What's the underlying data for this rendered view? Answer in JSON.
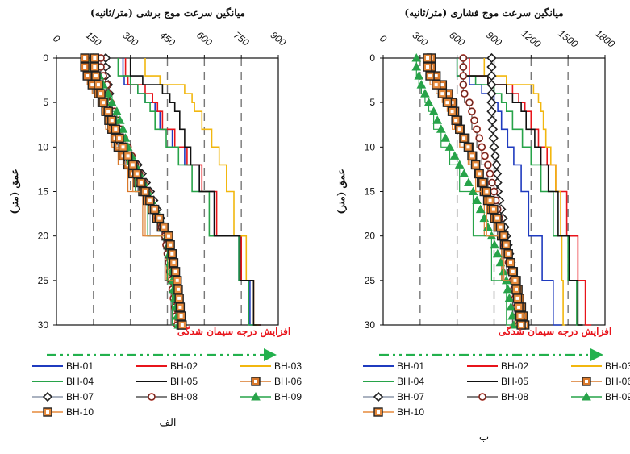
{
  "chart_data": [
    {
      "type": "line",
      "panel_label": "الف",
      "title": "میانگین سرعت موج برشی (متر/ثانیه)",
      "ylabel": "عمق (متر)",
      "xlim": [
        0,
        900
      ],
      "ylim": [
        0,
        30
      ],
      "x_axis_position": "top",
      "y_inverted": true,
      "x_ticks": [
        0,
        150,
        300,
        450,
        600,
        750,
        900
      ],
      "y_ticks": [
        0,
        5,
        10,
        15,
        20,
        25,
        30
      ],
      "grid": "vertical dashed gray",
      "annotation": "افزایش درجه سیمان شدگی",
      "y_knots": [
        0,
        1,
        2,
        3,
        4,
        5,
        6,
        8,
        10,
        12,
        15,
        20,
        25,
        30
      ],
      "series": [
        {
          "name": "BH-01",
          "color": "#1f3bbf",
          "marker": "none",
          "values": [
            270,
            270,
            275,
            330,
            360,
            400,
            420,
            470,
            520,
            580,
            640,
            740,
            785,
            815
          ]
        },
        {
          "name": "BH-02",
          "color": "#e8141b",
          "marker": "none",
          "values": [
            280,
            280,
            290,
            360,
            390,
            410,
            430,
            480,
            530,
            590,
            650,
            750,
            800,
            830
          ]
        },
        {
          "name": "BH-03",
          "color": "#f2b70f",
          "marker": "none",
          "values": [
            360,
            360,
            420,
            520,
            550,
            560,
            590,
            630,
            660,
            690,
            720,
            770,
            800,
            820
          ]
        },
        {
          "name": "BH-04",
          "color": "#27a349",
          "marker": "none",
          "values": [
            250,
            250,
            300,
            330,
            360,
            380,
            400,
            445,
            495,
            550,
            620,
            740,
            780,
            810
          ]
        },
        {
          "name": "BH-05",
          "color": "#111111",
          "marker": "none",
          "values": [
            300,
            300,
            350,
            430,
            460,
            480,
            500,
            520,
            545,
            580,
            640,
            745,
            800,
            830
          ]
        },
        {
          "name": "BH-06",
          "color": "#d9782a",
          "marker": "square",
          "values": [
            115,
            115,
            125,
            145,
            170,
            185,
            200,
            225,
            250,
            290,
            350,
            445,
            480,
            505
          ]
        },
        {
          "name": "BH-07",
          "color": "#8d98ab",
          "marker": "diamond",
          "values": [
            200,
            200,
            200,
            210,
            215,
            215,
            225,
            250,
            280,
            330,
            380,
            450,
            470,
            495
          ]
        },
        {
          "name": "BH-08",
          "color": "#555555",
          "marker": "circle",
          "values": [
            180,
            180,
            190,
            205,
            210,
            220,
            235,
            260,
            290,
            320,
            370,
            440,
            465,
            490
          ]
        },
        {
          "name": "BH-09",
          "color": "#27a349",
          "marker": "triangle",
          "values": [
            150,
            150,
            175,
            190,
            210,
            225,
            245,
            270,
            290,
            320,
            370,
            450,
            470,
            495
          ]
        },
        {
          "name": "BH-10",
          "color": "#e68a3c",
          "marker": "square",
          "values": [
            155,
            155,
            160,
            170,
            180,
            190,
            210,
            240,
            270,
            310,
            360,
            455,
            490,
            510
          ]
        }
      ]
    },
    {
      "type": "line",
      "panel_label": "ب",
      "title": "میانگین سرعت موج فشاری (متر/ثانیه)",
      "ylabel": "عمق (متر)",
      "xlim": [
        0,
        1800
      ],
      "ylim": [
        0,
        30
      ],
      "x_axis_position": "top",
      "y_inverted": true,
      "x_ticks": [
        0,
        300,
        600,
        900,
        1200,
        1500,
        1800
      ],
      "y_ticks": [
        0,
        5,
        10,
        15,
        20,
        25,
        30
      ],
      "grid": "vertical dashed gray",
      "annotation": "افزایش درجه سیمان شدگی",
      "y_knots": [
        0,
        1,
        2,
        3,
        4,
        5,
        6,
        8,
        10,
        12,
        15,
        20,
        25,
        30
      ],
      "series": [
        {
          "name": "BH-01",
          "color": "#1f3bbf",
          "marker": "none",
          "values": [
            600,
            600,
            700,
            800,
            900,
            930,
            960,
            1010,
            1060,
            1120,
            1180,
            1290,
            1380,
            1440
          ]
        },
        {
          "name": "BH-02",
          "color": "#e8141b",
          "marker": "none",
          "values": [
            700,
            700,
            850,
            1050,
            1100,
            1150,
            1200,
            1260,
            1330,
            1400,
            1490,
            1580,
            1640,
            1690
          ]
        },
        {
          "name": "BH-03",
          "color": "#f2b70f",
          "marker": "none",
          "values": [
            820,
            820,
            1000,
            1220,
            1260,
            1280,
            1300,
            1320,
            1360,
            1400,
            1440,
            1450,
            1460,
            1480
          ]
        },
        {
          "name": "BH-04",
          "color": "#27a349",
          "marker": "none",
          "values": [
            600,
            600,
            750,
            900,
            960,
            1000,
            1050,
            1130,
            1200,
            1280,
            1380,
            1500,
            1570,
            1620
          ]
        },
        {
          "name": "BH-05",
          "color": "#111111",
          "marker": "none",
          "values": [
            650,
            650,
            850,
            1000,
            1050,
            1120,
            1160,
            1230,
            1280,
            1340,
            1420,
            1510,
            1580,
            1620
          ]
        },
        {
          "name": "BH-06",
          "color": "#d9782a",
          "marker": "square",
          "values": [
            390,
            390,
            430,
            480,
            530,
            560,
            580,
            630,
            700,
            750,
            820,
            960,
            1080,
            1150
          ]
        },
        {
          "name": "BH-07",
          "color": "#8d98ab",
          "marker": "diamond",
          "values": [
            880,
            880,
            880,
            880,
            880,
            880,
            880,
            890,
            900,
            920,
            930,
            1000,
            1060,
            1100
          ]
        },
        {
          "name": "BH-08",
          "color": "#555555",
          "marker": "circle",
          "values": [
            650,
            650,
            650,
            650,
            660,
            700,
            720,
            760,
            800,
            850,
            900,
            970,
            1050,
            1100
          ]
        },
        {
          "name": "BH-09",
          "color": "#27a349",
          "marker": "triangle",
          "values": [
            270,
            270,
            290,
            310,
            340,
            370,
            410,
            470,
            540,
            620,
            730,
            880,
            1000,
            1060
          ]
        },
        {
          "name": "BH-10",
          "color": "#e68a3c",
          "marker": "square",
          "values": [
            360,
            360,
            380,
            430,
            480,
            520,
            560,
            620,
            690,
            750,
            840,
            980,
            1070,
            1120
          ]
        }
      ]
    }
  ]
}
